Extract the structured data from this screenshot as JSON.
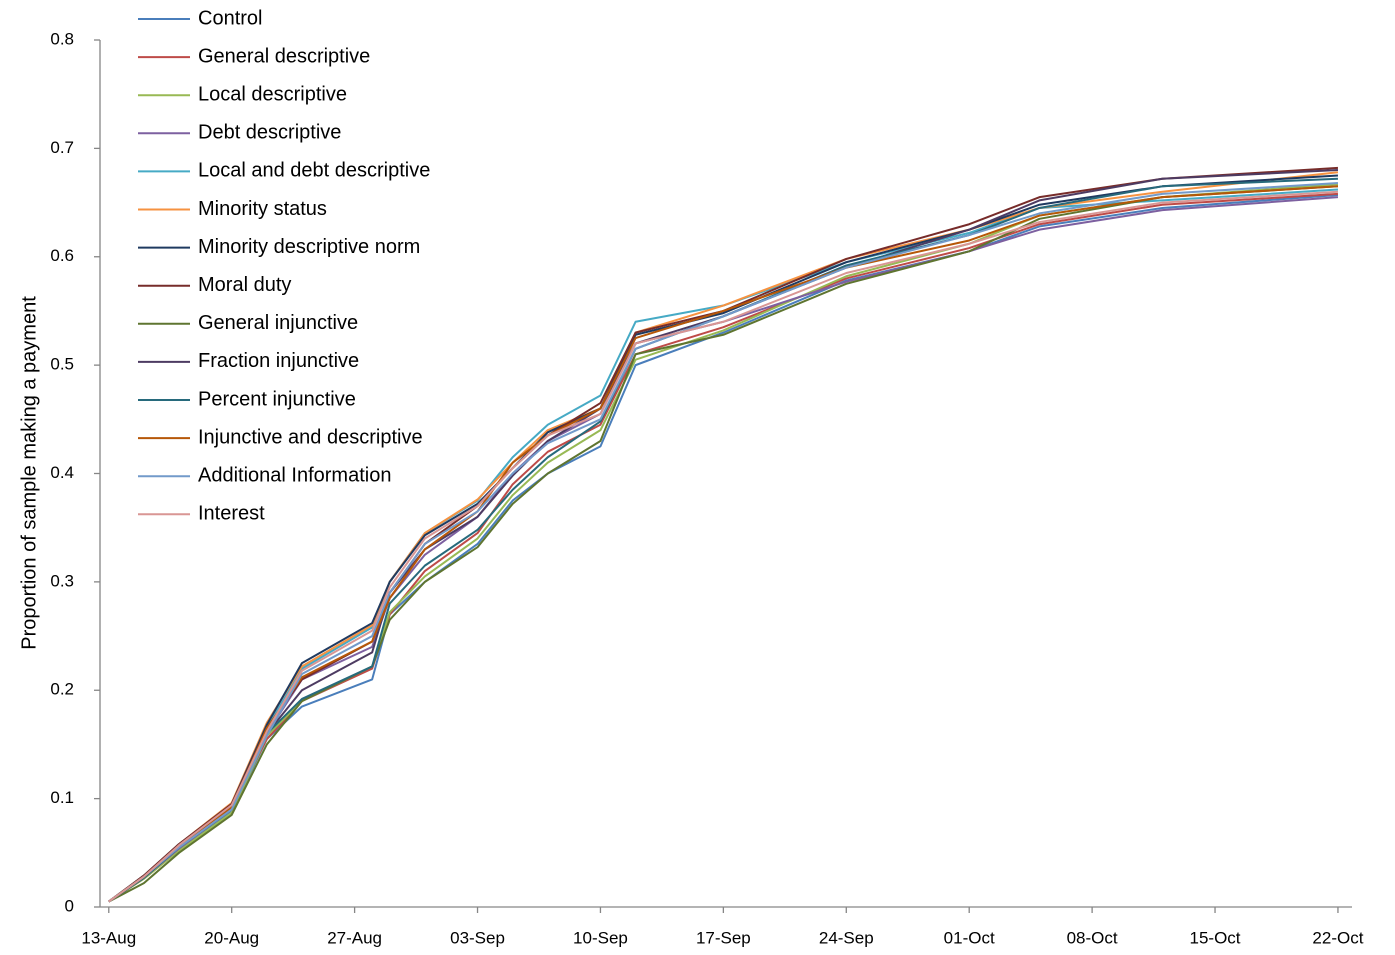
{
  "chart_data": {
    "type": "line",
    "y_label": "Proportion of sample making a payment",
    "x": [
      0,
      2,
      4,
      7,
      9,
      11,
      15,
      16,
      18,
      21,
      23,
      25,
      28,
      30,
      35,
      42,
      49,
      53,
      60,
      70
    ],
    "xlim": [
      -0.5,
      70.8
    ],
    "xticks": [
      {
        "value": 0,
        "label": "13-Aug"
      },
      {
        "value": 7,
        "label": "20-Aug"
      },
      {
        "value": 14,
        "label": "27-Aug"
      },
      {
        "value": 21,
        "label": "03-Sep"
      },
      {
        "value": 28,
        "label": "10-Sep"
      },
      {
        "value": 35,
        "label": "17-Sep"
      },
      {
        "value": 42,
        "label": "24-Sep"
      },
      {
        "value": 49,
        "label": "01-Oct"
      },
      {
        "value": 56,
        "label": "08-Oct"
      },
      {
        "value": 63,
        "label": "15-Oct"
      },
      {
        "value": 70,
        "label": "22-Oct"
      }
    ],
    "ylim": [
      0,
      0.8
    ],
    "yticks": [
      0,
      0.1,
      0.2,
      0.3,
      0.4,
      0.5,
      0.6,
      0.7,
      0.8
    ],
    "legend": "top-left",
    "series": [
      {
        "name": "Control",
        "color": "#4a7ebb",
        "values": [
          0.005,
          0.027,
          0.053,
          0.088,
          0.155,
          0.185,
          0.21,
          0.27,
          0.3,
          0.335,
          0.375,
          0.4,
          0.425,
          0.5,
          0.53,
          0.578,
          0.605,
          0.628,
          0.645,
          0.657
        ]
      },
      {
        "name": "General descriptive",
        "color": "#be4b48",
        "values": [
          0.005,
          0.028,
          0.055,
          0.092,
          0.155,
          0.19,
          0.22,
          0.27,
          0.31,
          0.345,
          0.39,
          0.42,
          0.445,
          0.51,
          0.535,
          0.58,
          0.608,
          0.63,
          0.648,
          0.658
        ]
      },
      {
        "name": "Local descriptive",
        "color": "#98b954",
        "values": [
          0.005,
          0.026,
          0.052,
          0.087,
          0.158,
          0.19,
          0.222,
          0.272,
          0.305,
          0.34,
          0.38,
          0.41,
          0.44,
          0.505,
          0.532,
          0.582,
          0.612,
          0.638,
          0.655,
          0.667
        ]
      },
      {
        "name": "Debt descriptive",
        "color": "#7d60a0",
        "values": [
          0.005,
          0.027,
          0.054,
          0.09,
          0.16,
          0.21,
          0.24,
          0.285,
          0.325,
          0.36,
          0.4,
          0.43,
          0.455,
          0.52,
          0.54,
          0.577,
          0.605,
          0.625,
          0.643,
          0.655
        ]
      },
      {
        "name": "Local and debt descriptive",
        "color": "#46aac5",
        "values": [
          0.005,
          0.029,
          0.058,
          0.095,
          0.165,
          0.22,
          0.258,
          0.3,
          0.345,
          0.375,
          0.415,
          0.445,
          0.472,
          0.54,
          0.555,
          0.595,
          0.622,
          0.645,
          0.652,
          0.662
        ]
      },
      {
        "name": "Minority status",
        "color": "#f69240",
        "values": [
          0.005,
          0.029,
          0.058,
          0.096,
          0.17,
          0.222,
          0.26,
          0.3,
          0.345,
          0.376,
          0.41,
          0.44,
          0.46,
          0.53,
          0.555,
          0.598,
          0.625,
          0.645,
          0.66,
          0.678
        ]
      },
      {
        "name": "Minority descriptive norm",
        "color": "#1f3a60",
        "values": [
          0.005,
          0.029,
          0.058,
          0.095,
          0.168,
          0.225,
          0.262,
          0.3,
          0.343,
          0.372,
          0.405,
          0.438,
          0.46,
          0.528,
          0.548,
          0.595,
          0.625,
          0.648,
          0.665,
          0.675
        ]
      },
      {
        "name": "Moral duty",
        "color": "#772c2a",
        "values": [
          0.005,
          0.029,
          0.058,
          0.095,
          0.165,
          0.21,
          0.245,
          0.29,
          0.335,
          0.37,
          0.405,
          0.435,
          0.465,
          0.53,
          0.55,
          0.598,
          0.63,
          0.655,
          0.672,
          0.682
        ]
      },
      {
        "name": "General injunctive",
        "color": "#5f7530",
        "values": [
          0.005,
          0.022,
          0.05,
          0.085,
          0.15,
          0.19,
          0.222,
          0.265,
          0.3,
          0.332,
          0.372,
          0.4,
          0.43,
          0.51,
          0.528,
          0.575,
          0.605,
          0.635,
          0.655,
          0.665
        ]
      },
      {
        "name": "Fraction injunctive",
        "color": "#4d3b62",
        "values": [
          0.005,
          0.027,
          0.055,
          0.09,
          0.16,
          0.2,
          0.235,
          0.29,
          0.33,
          0.36,
          0.398,
          0.43,
          0.46,
          0.52,
          0.545,
          0.59,
          0.625,
          0.652,
          0.672,
          0.68
        ]
      },
      {
        "name": "Percent injunctive",
        "color": "#276a7c",
        "values": [
          0.005,
          0.027,
          0.055,
          0.09,
          0.16,
          0.192,
          0.222,
          0.28,
          0.315,
          0.348,
          0.385,
          0.415,
          0.448,
          0.515,
          0.545,
          0.592,
          0.62,
          0.645,
          0.665,
          0.672
        ]
      },
      {
        "name": "Injunctive and descriptive",
        "color": "#b65708",
        "values": [
          0.005,
          0.028,
          0.056,
          0.092,
          0.165,
          0.212,
          0.245,
          0.285,
          0.33,
          0.365,
          0.41,
          0.435,
          0.46,
          0.525,
          0.55,
          0.59,
          0.615,
          0.638,
          0.655,
          0.665
        ]
      },
      {
        "name": "Additional Information",
        "color": "#729aca",
        "values": [
          0.005,
          0.028,
          0.055,
          0.09,
          0.158,
          0.215,
          0.25,
          0.29,
          0.335,
          0.365,
          0.4,
          0.428,
          0.45,
          0.515,
          0.545,
          0.59,
          0.62,
          0.64,
          0.658,
          0.668
        ]
      },
      {
        "name": "Interest",
        "color": "#d99694",
        "values": [
          0.005,
          0.028,
          0.057,
          0.094,
          0.162,
          0.218,
          0.255,
          0.295,
          0.34,
          0.37,
          0.405,
          0.435,
          0.455,
          0.52,
          0.54,
          0.585,
          0.612,
          0.632,
          0.65,
          0.66
        ]
      }
    ]
  }
}
